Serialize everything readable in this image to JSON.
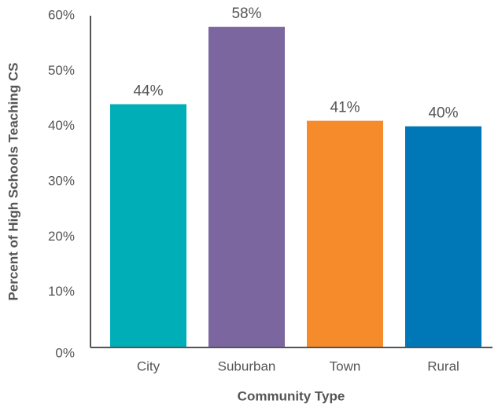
{
  "chart_data": {
    "type": "bar",
    "xlabel": "Community Type",
    "ylabel": "Percent of High Schools Teaching CS",
    "categories": [
      "City",
      "Suburban",
      "Town",
      "Rural"
    ],
    "values": [
      44,
      58,
      41,
      40
    ],
    "value_labels": [
      "44%",
      "58%",
      "41%",
      "40%"
    ],
    "colors": [
      "#00aeb8",
      "#7b66a0",
      "#f68b2c",
      "#0077b6"
    ],
    "ylim": [
      0,
      60
    ],
    "yticks": [
      {
        "value": 0,
        "label": "0%"
      },
      {
        "value": 10,
        "label": "10%"
      },
      {
        "value": 20,
        "label": "20%"
      },
      {
        "value": 30,
        "label": "30%"
      },
      {
        "value": 40,
        "label": "40%"
      },
      {
        "value": 50,
        "label": "50%"
      },
      {
        "value": 60,
        "label": "60%"
      }
    ],
    "grid": false
  }
}
